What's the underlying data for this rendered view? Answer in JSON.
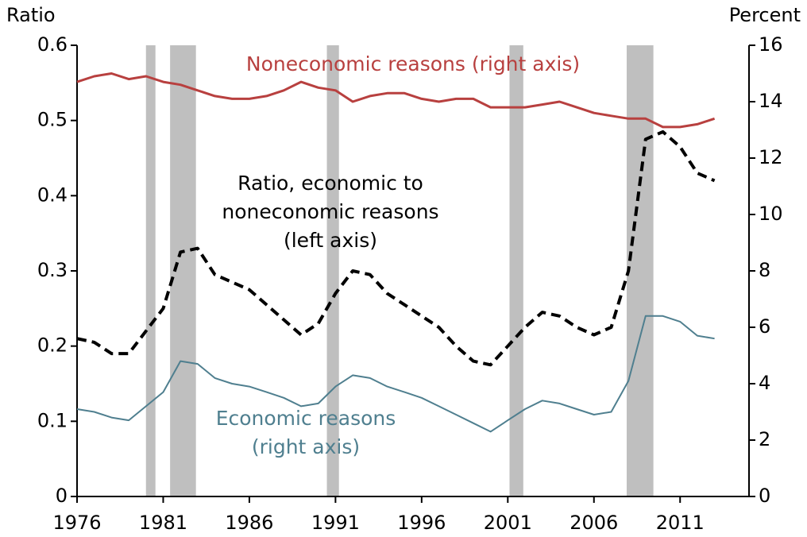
{
  "chart_data": {
    "type": "line",
    "ylabel": "Ratio",
    "y2label": "Percent",
    "x": [
      1976,
      1977,
      1978,
      1979,
      1980,
      1981,
      1982,
      1983,
      1984,
      1985,
      1986,
      1987,
      1988,
      1989,
      1990,
      1991,
      1992,
      1993,
      1994,
      1995,
      1996,
      1997,
      1998,
      1999,
      2000,
      2001,
      2002,
      2003,
      2004,
      2005,
      2006,
      2007,
      2008,
      2009,
      2010,
      2011,
      2012,
      2013
    ],
    "series": [
      {
        "label": [
          "Noneconomic reasons (right axis)"
        ],
        "color": "#b8403f",
        "axis": "y2",
        "dashed": false,
        "width": 3,
        "values": [
          14.7,
          14.9,
          15.0,
          14.8,
          14.9,
          14.7,
          14.6,
          14.4,
          14.2,
          14.1,
          14.1,
          14.2,
          14.4,
          14.7,
          14.5,
          14.4,
          14.0,
          14.2,
          14.3,
          14.3,
          14.1,
          14.0,
          14.1,
          14.1,
          13.8,
          13.8,
          13.8,
          13.9,
          14.0,
          13.8,
          13.6,
          13.5,
          13.4,
          13.4,
          13.1,
          13.1,
          13.2,
          13.4
        ]
      },
      {
        "label": [
          "Ratio, economic to",
          "noneconomic reasons",
          "(left axis)"
        ],
        "color": "#000000",
        "axis": "y",
        "dashed": true,
        "width": 4,
        "values": [
          0.21,
          0.205,
          0.19,
          0.19,
          0.22,
          0.25,
          0.325,
          0.33,
          0.295,
          0.285,
          0.275,
          0.255,
          0.235,
          0.215,
          0.23,
          0.27,
          0.3,
          0.295,
          0.27,
          0.255,
          0.24,
          0.225,
          0.2,
          0.18,
          0.175,
          0.2,
          0.225,
          0.245,
          0.24,
          0.225,
          0.215,
          0.225,
          0.3,
          0.475,
          0.485,
          0.465,
          0.43,
          0.42
        ]
      },
      {
        "label": [
          "Economic reasons",
          "(right axis)"
        ],
        "color": "#4f7f8f",
        "axis": "y2",
        "dashed": false,
        "width": 2,
        "values": [
          3.1,
          3.0,
          2.8,
          2.7,
          3.2,
          3.7,
          4.8,
          4.7,
          4.2,
          4.0,
          3.9,
          3.7,
          3.5,
          3.2,
          3.3,
          3.9,
          4.3,
          4.2,
          3.9,
          3.7,
          3.5,
          3.2,
          2.9,
          2.6,
          2.3,
          2.7,
          3.1,
          3.4,
          3.3,
          3.1,
          2.9,
          3.0,
          4.1,
          6.4,
          6.4,
          6.2,
          5.7,
          5.6
        ]
      }
    ],
    "recessions": [
      [
        1980.0,
        1980.55
      ],
      [
        1981.4,
        1982.9
      ],
      [
        1990.5,
        1991.2
      ],
      [
        2001.1,
        2001.9
      ],
      [
        2007.9,
        2009.45
      ]
    ],
    "recession_color": "#bfbfbf",
    "xlim": [
      1976,
      2015
    ],
    "xticks": [
      1976,
      1981,
      1986,
      1991,
      1996,
      2001,
      2006,
      2011
    ],
    "ylim": [
      0,
      0.6
    ],
    "yticks": [
      0,
      0.1,
      0.2,
      0.3,
      0.4,
      0.5,
      0.6
    ],
    "y2lim": [
      0,
      16
    ],
    "y2ticks": [
      0,
      2,
      4,
      6,
      8,
      10,
      12,
      14,
      16
    ]
  }
}
